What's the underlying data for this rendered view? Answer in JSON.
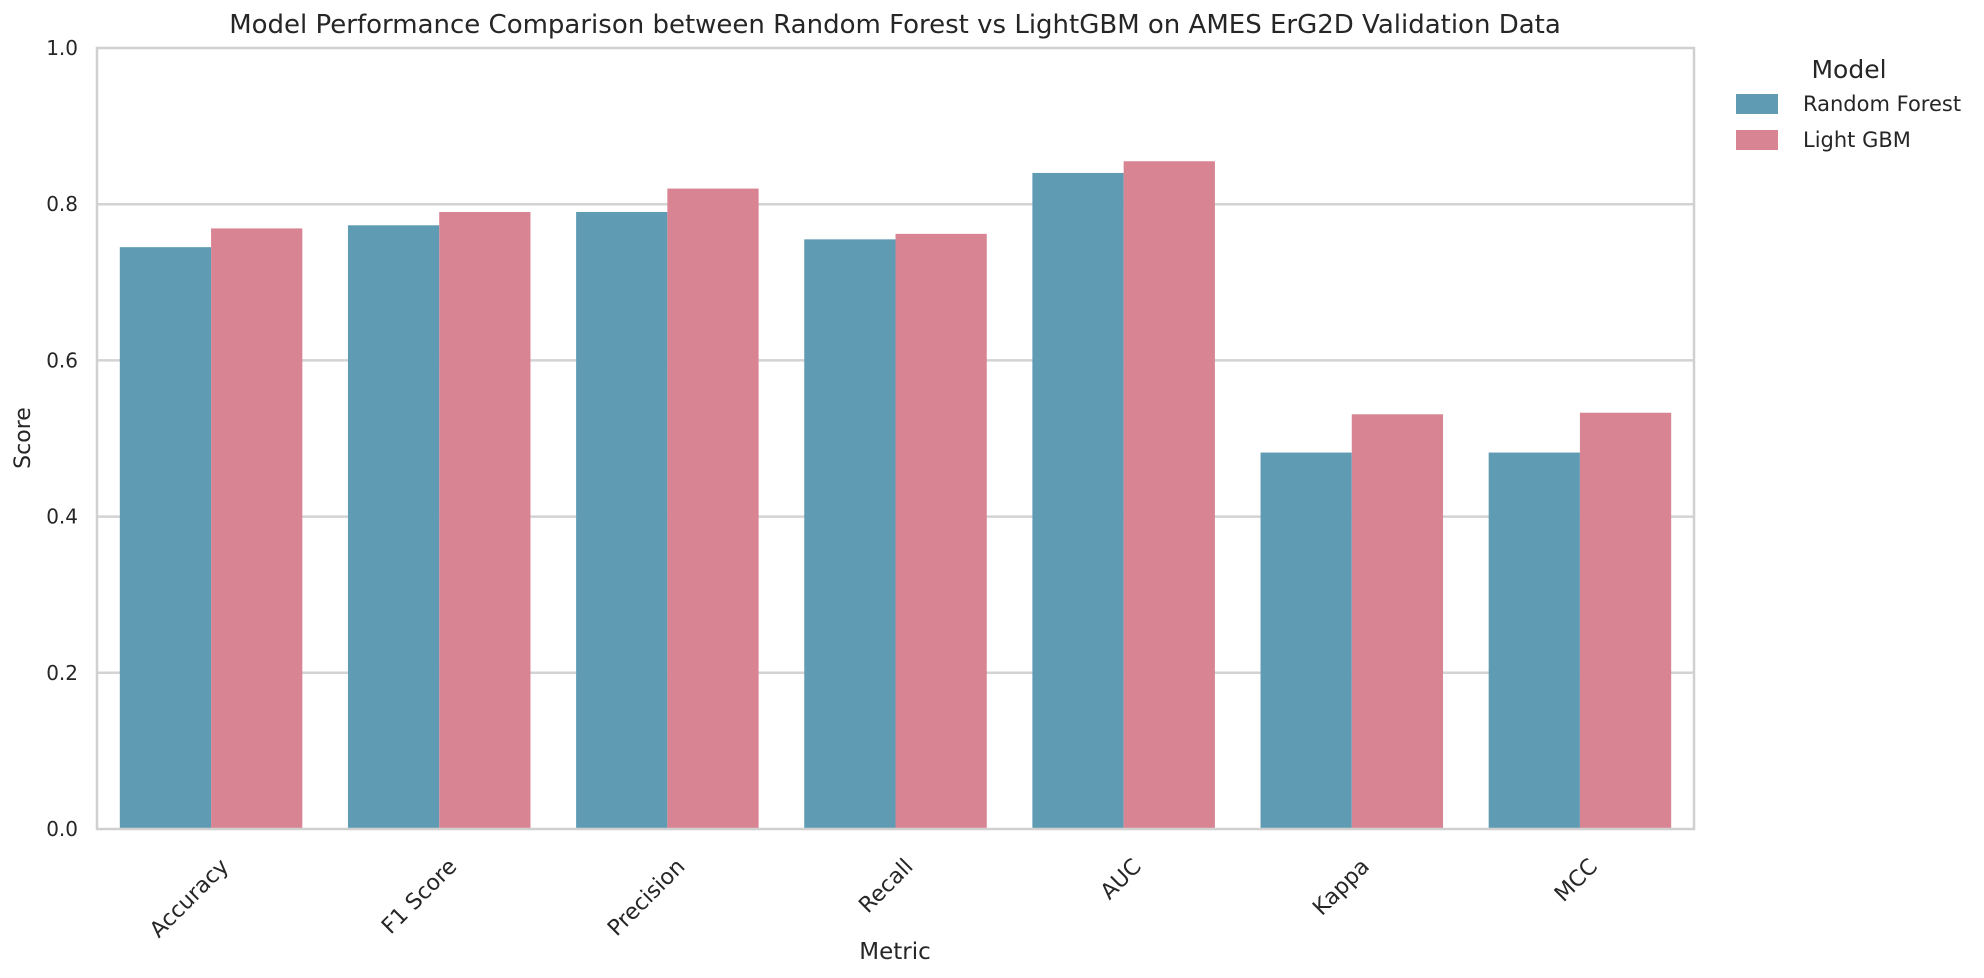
{
  "chart_data": {
    "type": "bar",
    "title": "Model Performance Comparison between Random Forest vs LightGBM on AMES ErG2D Validation Data",
    "xlabel": "Metric",
    "ylabel": "Score",
    "ylim": [
      0,
      1.0
    ],
    "yticks": [
      "0.0",
      "0.2",
      "0.4",
      "0.6",
      "0.8",
      "1.0"
    ],
    "grid": true,
    "categories": [
      "Accuracy",
      "F1 Score",
      "Precision",
      "Recall",
      "AUC",
      "Kappa",
      "MCC"
    ],
    "series": [
      {
        "name": "Random Forest",
        "color": "#5f9cb4",
        "values": [
          0.745,
          0.773,
          0.79,
          0.755,
          0.84,
          0.482,
          0.482
        ]
      },
      {
        "name": "Light GBM",
        "color": "#d98493",
        "values": [
          0.769,
          0.79,
          0.82,
          0.762,
          0.855,
          0.531,
          0.533
        ]
      }
    ],
    "legend": {
      "title": "Model",
      "position": "outside-top-right"
    }
  }
}
